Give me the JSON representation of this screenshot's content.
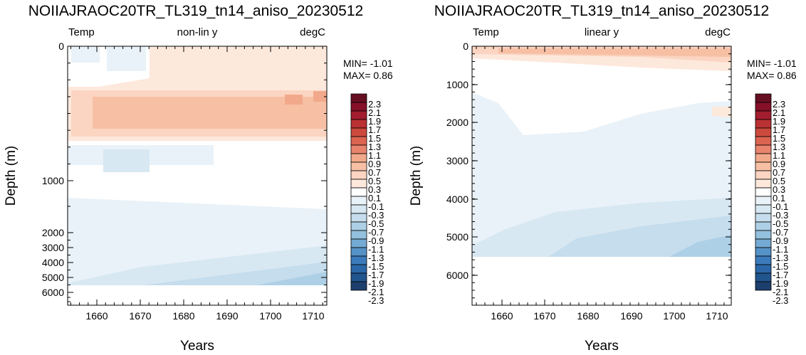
{
  "palette": [
    "#1d3f6e",
    "#21558e",
    "#2b67a8",
    "#3b7bbb",
    "#5592c7",
    "#74aad3",
    "#93c0dd",
    "#aed0e6",
    "#c5dded",
    "#d8e8f3",
    "#e9f2f8",
    "#ffffff",
    "#fde8dc",
    "#fbd5c1",
    "#f7c0a5",
    "#f2a98b",
    "#e8846d",
    "#dc6450",
    "#cc4a3d",
    "#ba3133",
    "#a21d2d",
    "#851028",
    "#670f22"
  ],
  "chart_data": [
    {
      "type": "contour",
      "title": "NOIIAJRAOC20TR_TL319_tn14_aniso_20230512",
      "left_label": "Temp",
      "center_label": "non-lin y",
      "right_label": "degC",
      "xlabel": "Years",
      "ylabel": "Depth (m)",
      "xticks": [
        "1660",
        "1670",
        "1680",
        "1690",
        "1700",
        "1710"
      ],
      "yticks": [
        "0",
        "1000",
        "2000",
        "3000",
        "4000",
        "5000",
        "6000"
      ],
      "y_scale": "nonlinear",
      "xlim": [
        1653,
        1713
      ],
      "min_text": "MIN= -1.01",
      "max_text": "MAX=  0.86",
      "colorbar_labels": [
        "2.3",
        "2.1",
        "1.9",
        "1.7",
        "1.5",
        "1.3",
        "1.1",
        "0.9",
        "0.7",
        "0.5",
        "0.3",
        "0.1",
        "-0.1",
        "-0.3",
        "-0.5",
        "-0.7",
        "-0.9",
        "-1.1",
        "-1.3",
        "-1.5",
        "-1.7",
        "-1.9",
        "-2.1",
        "-2.3"
      ]
    },
    {
      "type": "contour",
      "title": "NOIIAJRAOC20TR_TL319_tn14_aniso_20230512",
      "left_label": "Temp",
      "center_label": "linear y",
      "right_label": "degC",
      "xlabel": "Years",
      "ylabel": "Depth (m)",
      "xticks": [
        "1660",
        "1670",
        "1680",
        "1690",
        "1700",
        "1710"
      ],
      "yticks": [
        "0",
        "1000",
        "2000",
        "3000",
        "4000",
        "5000",
        "6000"
      ],
      "y_scale": "linear",
      "xlim": [
        1653,
        1713
      ],
      "ylim": [
        6800,
        0
      ],
      "min_text": "MIN= -1.01",
      "max_text": "MAX=  0.86",
      "colorbar_labels": [
        "2.3",
        "2.1",
        "1.9",
        "1.7",
        "1.5",
        "1.3",
        "1.1",
        "0.9",
        "0.7",
        "0.5",
        "0.3",
        "0.1",
        "-0.1",
        "-0.3",
        "-0.5",
        "-0.7",
        "-0.9",
        "-1.1",
        "-1.3",
        "-1.5",
        "-1.7",
        "-1.9",
        "-2.1",
        "-2.3"
      ]
    }
  ]
}
